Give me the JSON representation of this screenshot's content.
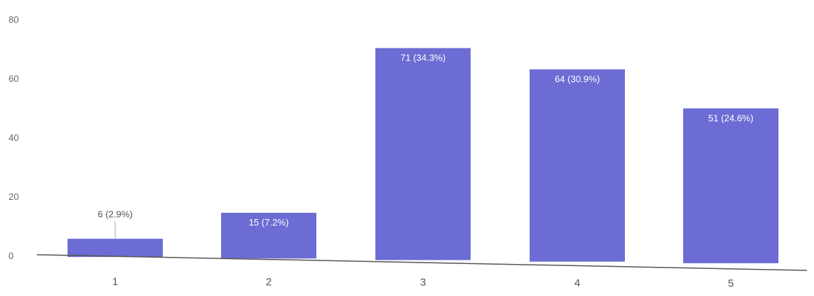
{
  "chart_data": {
    "type": "bar",
    "title": "",
    "xlabel": "",
    "ylabel": "",
    "categories": [
      "1",
      "2",
      "3",
      "4",
      "5"
    ],
    "values": [
      6,
      15,
      71,
      64,
      51
    ],
    "data_labels": [
      "6 (2.9%)",
      "15 (7.2%)",
      "71 (34.3%)",
      "64 (30.9%)",
      "51 (24.6%)"
    ],
    "ylim": [
      0,
      80
    ],
    "yticks": [
      "0",
      "20",
      "40",
      "60",
      "80"
    ],
    "grid": false,
    "legend": "none",
    "bar_color": "#6c6cd4",
    "axis_color": "#555555",
    "label_color_inside": "#ffffff",
    "label_color_outside": "#555555"
  }
}
